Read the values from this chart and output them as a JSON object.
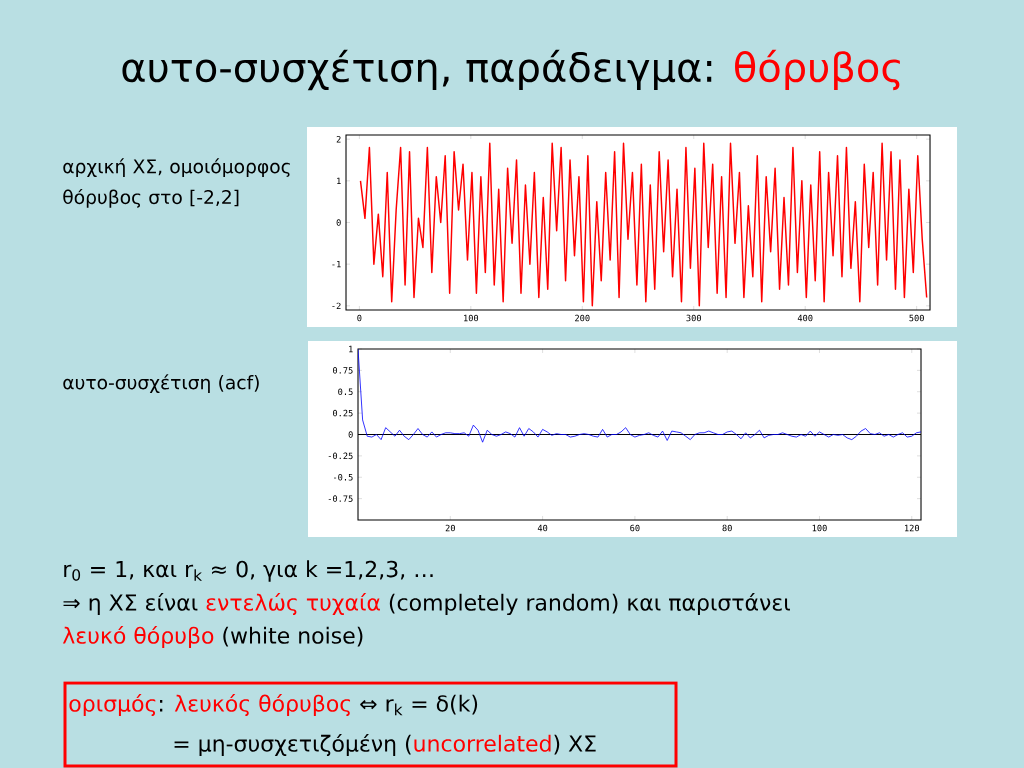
{
  "chart_data": [
    {
      "type": "other",
      "title": "αυτο-συσχέτιση, παράδειγμα:",
      "subtitle": "θόρυβος",
      "annotations": [
        "r$_{0}$  = 1, και r$_{k}$ ≈ 0, για k =1,2,3, …",
        "⇒ η ΧΣ είναι ",
        "εντελώς τυχαία",
        " (completely random) και παριστάνει",
        "λευκό θόρυβο",
        " (white noise)",
        "ορισμός",
        ": ",
        "λευκός θόρυβος",
        " ⇔ r$_{k}$ = δ(k)",
        "= μη-συσχετιζόμένη (",
        "uncorrelated",
        ") ΧΣ"
      ]
    },
    {
      "type": "line",
      "title": "αρχική ΧΣ, ομοιόμορφος θόρυβος στο [-2,2]",
      "color": "#ff0000",
      "x": [
        1,
        5,
        9,
        13,
        17,
        21,
        25,
        29,
        33,
        37,
        41,
        45,
        49,
        53,
        57,
        61,
        65,
        69,
        73,
        77,
        81,
        85,
        89,
        93,
        97,
        101,
        105,
        109,
        113,
        117,
        121,
        125,
        129,
        133,
        137,
        141,
        145,
        149,
        153,
        157,
        161,
        165,
        169,
        173,
        177,
        181,
        185,
        189,
        193,
        197,
        201,
        205,
        209,
        213,
        217,
        221,
        225,
        229,
        233,
        237,
        241,
        245,
        249,
        253,
        257,
        261,
        265,
        269,
        273,
        277,
        281,
        285,
        289,
        293,
        297,
        301,
        305,
        309,
        313,
        317,
        321,
        325,
        329,
        333,
        337,
        341,
        345,
        349,
        353,
        357,
        361,
        365,
        369,
        373,
        377,
        381,
        385,
        389,
        393,
        397,
        401,
        405,
        409,
        413,
        417,
        421,
        425,
        429,
        433,
        437,
        441,
        445,
        449,
        453,
        457,
        461,
        465,
        469,
        473,
        477,
        481,
        485,
        489,
        493,
        497,
        501,
        505,
        509
      ],
      "values": [
        1.0,
        0.1,
        1.8,
        -1.0,
        0.2,
        -1.3,
        1.2,
        -1.9,
        0.3,
        1.8,
        -1.5,
        1.7,
        -1.8,
        0.1,
        -0.6,
        1.8,
        -1.2,
        1.1,
        0.0,
        1.6,
        -1.7,
        1.7,
        0.3,
        1.4,
        -0.9,
        1.2,
        -1.7,
        1.1,
        -1.2,
        1.9,
        -1.5,
        0.8,
        -1.9,
        1.3,
        -0.5,
        1.5,
        -1.7,
        0.9,
        -1.0,
        1.2,
        -1.8,
        0.6,
        -1.6,
        1.9,
        -0.2,
        1.8,
        -1.4,
        1.5,
        -0.8,
        1.1,
        -1.9,
        1.6,
        -2.0,
        0.5,
        -1.4,
        1.2,
        -0.9,
        1.7,
        -1.8,
        1.9,
        -0.4,
        1.2,
        -1.5,
        1.4,
        -1.9,
        0.9,
        -1.6,
        1.7,
        -0.7,
        1.5,
        -1.3,
        0.8,
        -1.9,
        1.8,
        -1.1,
        1.3,
        -2.0,
        1.9,
        -0.6,
        1.4,
        -1.7,
        1.1,
        -1.8,
        1.9,
        -0.5,
        1.2,
        -1.8,
        0.4,
        -1.3,
        1.6,
        -1.9,
        1.1,
        -0.7,
        1.3,
        -1.6,
        0.6,
        -1.5,
        1.8,
        -1.2,
        1.0,
        -1.8,
        0.9,
        -1.4,
        1.7,
        -1.9,
        1.2,
        -0.8,
        1.6,
        -1.3,
        1.8,
        -1.1,
        0.5,
        -1.9,
        1.4,
        -0.6,
        1.2,
        -1.5,
        1.9,
        -0.9,
        1.7,
        -1.6,
        1.5,
        -1.8,
        0.8,
        -1.2,
        1.6,
        -0.4,
        -1.8
      ],
      "xlim": [
        -12,
        512
      ],
      "ylim": [
        -2.1,
        2.1
      ],
      "xticks": [
        0,
        100,
        200,
        300,
        400,
        500
      ],
      "yticks": [
        -2,
        -1,
        0,
        1,
        2
      ]
    },
    {
      "type": "line",
      "title": "αυτο-συσχέτιση (acf)",
      "color": "#0000ff",
      "x": [
        0,
        1,
        2,
        3,
        4,
        5,
        6,
        7,
        8,
        9,
        10,
        11,
        12,
        13,
        14,
        15,
        16,
        17,
        18,
        19,
        20,
        21,
        22,
        23,
        24,
        25,
        26,
        27,
        28,
        29,
        30,
        31,
        32,
        33,
        34,
        35,
        36,
        37,
        38,
        39,
        40,
        41,
        42,
        43,
        44,
        45,
        46,
        47,
        48,
        49,
        50,
        51,
        52,
        53,
        54,
        55,
        56,
        57,
        58,
        59,
        60,
        61,
        62,
        63,
        64,
        65,
        66,
        67,
        68,
        69,
        70,
        71,
        72,
        73,
        74,
        75,
        76,
        77,
        78,
        79,
        80,
        81,
        82,
        83,
        84,
        85,
        86,
        87,
        88,
        89,
        90,
        91,
        92,
        93,
        94,
        95,
        96,
        97,
        98,
        99,
        100,
        101,
        102,
        103,
        104,
        105,
        106,
        107,
        108,
        109,
        110,
        111,
        112,
        113,
        114,
        115,
        116,
        117,
        118,
        119,
        120,
        121,
        122
      ],
      "values": [
        1,
        0.17,
        -0.02,
        -0.03,
        0.0,
        -0.06,
        0.08,
        0.03,
        -0.02,
        0.05,
        -0.02,
        -0.06,
        0.0,
        0.07,
        0.0,
        -0.03,
        0.03,
        -0.03,
        0.0,
        0.02,
        0.02,
        0.01,
        0.01,
        0.02,
        -0.02,
        0.11,
        0.05,
        -0.09,
        0.05,
        0.0,
        -0.02,
        0.0,
        0.03,
        0.01,
        -0.03,
        0.08,
        -0.02,
        0.07,
        0.03,
        -0.03,
        0.06,
        0.03,
        -0.01,
        0.01,
        0.0,
        0.0,
        -0.03,
        -0.02,
        0.0,
        0.01,
        0.0,
        -0.02,
        -0.03,
        0.06,
        -0.03,
        0.0,
        0.0,
        0.03,
        0.08,
        0.0,
        -0.03,
        -0.01,
        0.0,
        0.02,
        -0.01,
        -0.03,
        0.04,
        -0.07,
        0.04,
        0.03,
        0.02,
        -0.02,
        -0.06,
        0.0,
        0.02,
        0.02,
        0.04,
        0.02,
        0.0,
        0.0,
        0.03,
        0.04,
        0.0,
        -0.05,
        0.02,
        -0.04,
        0.0,
        0.05,
        -0.04,
        -0.01,
        0.0,
        0.0,
        0.02,
        0.0,
        -0.02,
        -0.03,
        0.0,
        -0.02,
        0.04,
        -0.02,
        0.03,
        0.0,
        -0.03,
        0.0,
        -0.01,
        0.0,
        -0.04,
        -0.06,
        -0.02,
        0.04,
        0.07,
        0.01,
        0.0,
        0.02,
        -0.02,
        0.0,
        -0.03,
        0.0,
        0.02,
        -0.03,
        -0.02,
        0.02,
        0.03
      ],
      "xlim": [
        0,
        122
      ],
      "ylim": [
        -1,
        1
      ],
      "xticks": [
        20,
        40,
        60,
        80,
        100,
        120
      ],
      "yticks": [
        1,
        0.75,
        0.5,
        0.25,
        0,
        -0.25,
        -0.5,
        -0.75
      ],
      "ref_lines": [
        {
          "axis": "y",
          "value": 0,
          "color": "#000000"
        }
      ]
    }
  ]
}
